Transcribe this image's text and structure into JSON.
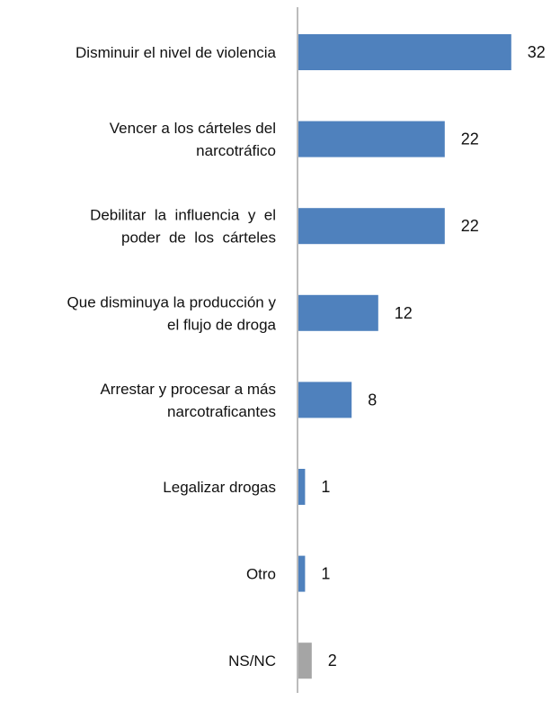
{
  "chart_data": {
    "type": "bar",
    "orientation": "horizontal",
    "categories": [
      "Disminuir el nivel de violencia",
      "Vencer a los cárteles del narcotráfico",
      "Debilitar la influencia y el poder de los cárteles",
      "Que disminuya la producción y el flujo de droga",
      "Arrestar y procesar a más narcotraficantes",
      "Legalizar drogas",
      "Otro",
      "NS/NC"
    ],
    "category_lines": [
      [
        "Disminuir el nivel de violencia"
      ],
      [
        "Vencer a los cárteles del",
        "narcotráfico"
      ],
      [
        "Debilitar  la  influencia  y  el",
        "poder  de  los  cárteles"
      ],
      [
        "Que disminuya la producción y",
        "el flujo de droga"
      ],
      [
        "Arrestar y procesar a más",
        "narcotraficantes"
      ],
      [
        "Legalizar drogas"
      ],
      [
        "Otro"
      ],
      [
        "NS/NC"
      ]
    ],
    "values": [
      32,
      22,
      22,
      12,
      8,
      1,
      1,
      2
    ],
    "bar_colors": [
      "#4F81BD",
      "#4F81BD",
      "#4F81BD",
      "#4F81BD",
      "#4F81BD",
      "#4F81BD",
      "#4F81BD",
      "#A5A5A5"
    ],
    "axis_color": "#A6A6A6",
    "xlim": [
      0,
      32
    ],
    "grid": false,
    "legend": "none"
  }
}
